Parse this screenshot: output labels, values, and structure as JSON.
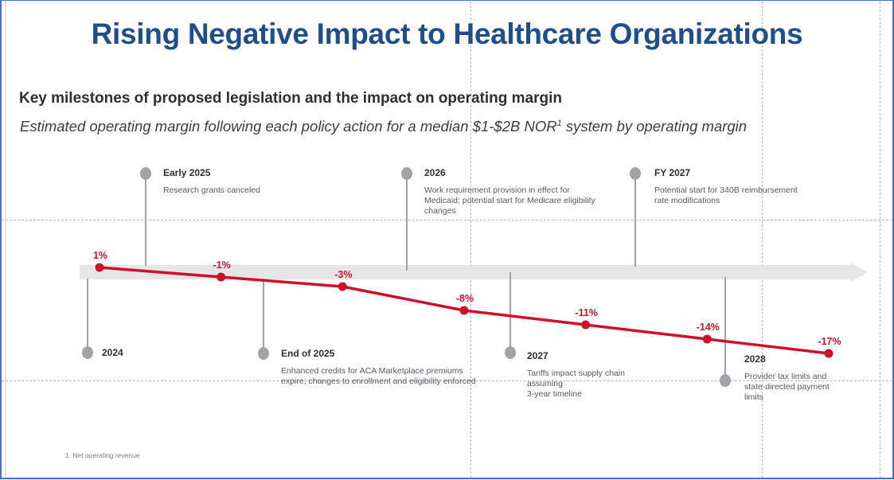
{
  "header": {
    "title": "Rising Negative Impact to Healthcare Organizations",
    "subtitle": "Key milestones of proposed legislation and the impact on operating margin",
    "description_pre": "Estimated operating margin following each policy action for a median $1-$2B NOR",
    "description_sup": "1",
    "description_post": " system by operating margin"
  },
  "colors": {
    "title": "#1f4e8f",
    "series": "#d0102a",
    "milestone": "#a0a3a8",
    "arrow": "#e6e6e6",
    "frame": "#4a72c4"
  },
  "milestones_above": [
    {
      "year": "Early 2025",
      "text": [
        "Research grants canceled"
      ]
    },
    {
      "year": "2026",
      "text": [
        "Work requirement provision in effect for",
        "Medicaid; potential start for Medicare eligibility",
        "changes"
      ]
    },
    {
      "year": "FY 2027",
      "text": [
        "Potential start for 340B reimbursement",
        "rate modifications"
      ]
    }
  ],
  "milestones_below": [
    {
      "year": "2024",
      "text": []
    },
    {
      "year": "End of 2025",
      "text": [
        "Enhanced credits for ACA Marketplace premiums",
        "expire; changes to enrollment and eligibility enforced"
      ]
    },
    {
      "year": "2027",
      "text": [
        "Tariffs impact supply chain",
        "assuming",
        "3-year timeline"
      ]
    },
    {
      "year": "2028",
      "text": [
        "Provider tax limits and",
        "state-directed payment",
        "limits"
      ]
    }
  ],
  "chart_data": {
    "type": "line",
    "title": "Key milestones of proposed legislation and the impact on operating margin",
    "subtitle": "Estimated operating margin following each policy action for a median $1-$2B NOR system by operating margin",
    "xlabel": "",
    "ylabel": "Operating margin",
    "series": [
      {
        "name": "Estimated operating margin",
        "values": [
          1,
          -1,
          -3,
          -8,
          -11,
          -14,
          -17
        ],
        "labels": [
          "1%",
          "-1%",
          "-3%",
          "-8%",
          "-11%",
          "-14%",
          "-17%"
        ]
      }
    ],
    "ylim": [
      -17,
      1
    ],
    "grid": false,
    "legend": "none"
  },
  "footnote": "1.  Net operating revenue"
}
